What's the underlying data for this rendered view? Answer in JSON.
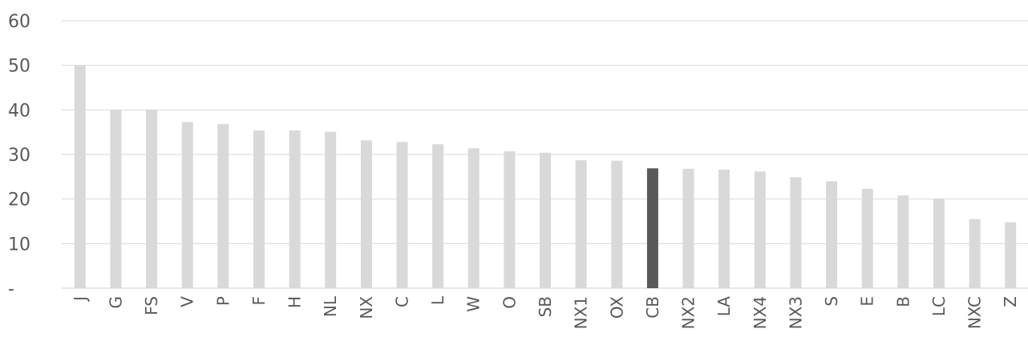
{
  "chart_data": {
    "type": "bar",
    "title": "",
    "xlabel": "",
    "ylabel": "",
    "ylim": [
      0,
      60
    ],
    "yticks": [
      {
        "value": 0,
        "label": "-"
      },
      {
        "value": 10,
        "label": "10"
      },
      {
        "value": 20,
        "label": "20"
      },
      {
        "value": 30,
        "label": "30"
      },
      {
        "value": 40,
        "label": "40"
      },
      {
        "value": 50,
        "label": "50"
      },
      {
        "value": 60,
        "label": "60"
      }
    ],
    "grid": true,
    "legend": "none",
    "categories": [
      "J",
      "G",
      "FS",
      "V",
      "P",
      "F",
      "H",
      "NL",
      "NX",
      "C",
      "L",
      "W",
      "O",
      "SB",
      "NX1",
      "OX",
      "CB",
      "NX2",
      "LA",
      "NX4",
      "NX3",
      "S",
      "E",
      "B",
      "LC",
      "NXC",
      "Z"
    ],
    "values": [
      50,
      40,
      40,
      37.3,
      36.8,
      35.4,
      35.4,
      35.1,
      33.2,
      32.8,
      32.3,
      31.4,
      30.7,
      30.4,
      28.7,
      28.6,
      26.9,
      26.8,
      26.6,
      26.2,
      24.9,
      24.0,
      22.3,
      20.8,
      20.1,
      15.5,
      14.8
    ],
    "highlight_category": "CB",
    "colors": {
      "bar": "#d9d9d9",
      "highlight": "#595959",
      "grid": "#d9d9d9",
      "text": "#595959"
    }
  }
}
